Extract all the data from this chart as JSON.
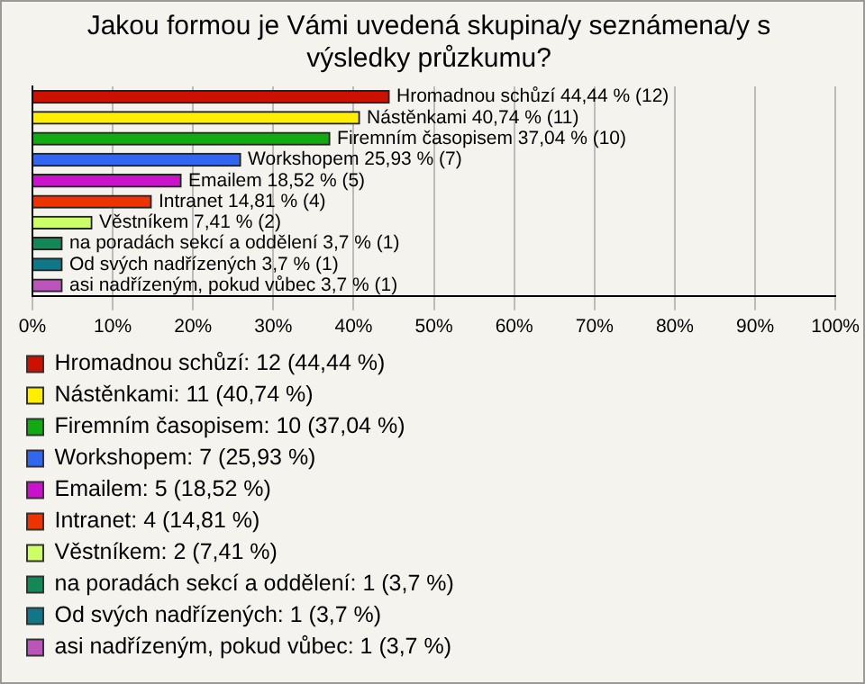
{
  "chart_data": {
    "type": "bar",
    "orientation": "horizontal",
    "title": "Jakou formou je Vámi uvedená skupina/y seznámena/y s výsledky průzkumu?",
    "categories": [
      null,
      null,
      null,
      null,
      null,
      null,
      null,
      null,
      null,
      null
    ],
    "series": [
      {
        "name": "Hromadnou schůzí: 12 (44,44 %)",
        "color": "#cc1100",
        "values": [
          44.44,
          null,
          null,
          null,
          null,
          null,
          null,
          null,
          null,
          null
        ],
        "value_labels": [
          "Hromadnou schůzí 44,44 % (12)",
          null,
          null,
          null,
          null,
          null,
          null,
          null,
          null,
          null
        ]
      },
      {
        "name": "Nástěnkami: 11 (40,74 %)",
        "color": "#ffee00",
        "values": [
          null,
          40.74,
          null,
          null,
          null,
          null,
          null,
          null,
          null,
          null
        ],
        "value_labels": [
          null,
          "Nástěnkami 40,74 % (11)",
          null,
          null,
          null,
          null,
          null,
          null,
          null,
          null
        ]
      },
      {
        "name": "Firemním časopisem: 10 (37,04 %)",
        "color": "#11aa11",
        "values": [
          null,
          null,
          37.04,
          null,
          null,
          null,
          null,
          null,
          null,
          null
        ],
        "value_labels": [
          null,
          null,
          "Firemním časopisem 37,04 % (10)",
          null,
          null,
          null,
          null,
          null,
          null,
          null
        ]
      },
      {
        "name": "Workshopem: 7 (25,93 %)",
        "color": "#3366ee",
        "values": [
          null,
          null,
          null,
          25.93,
          null,
          null,
          null,
          null,
          null,
          null
        ],
        "value_labels": [
          null,
          null,
          null,
          "Workshopem 25,93 % (7)",
          null,
          null,
          null,
          null,
          null,
          null
        ]
      },
      {
        "name": "Emailem: 5 (18,52 %)",
        "color": "#cc11cc",
        "values": [
          null,
          null,
          null,
          null,
          18.52,
          null,
          null,
          null,
          null,
          null
        ],
        "value_labels": [
          null,
          null,
          null,
          null,
          "Emailem 18,52 % (5)",
          null,
          null,
          null,
          null,
          null
        ]
      },
      {
        "name": "Intranet: 4 (14,81 %)",
        "color": "#ee3300",
        "values": [
          null,
          null,
          null,
          null,
          null,
          14.81,
          null,
          null,
          null,
          null
        ],
        "value_labels": [
          null,
          null,
          null,
          null,
          null,
          "Intranet 14,81 % (4)",
          null,
          null,
          null,
          null
        ]
      },
      {
        "name": "Věstníkem: 2 (7,41 %)",
        "color": "#ccff66",
        "values": [
          null,
          null,
          null,
          null,
          null,
          null,
          7.41,
          null,
          null,
          null
        ],
        "value_labels": [
          null,
          null,
          null,
          null,
          null,
          null,
          "Věstníkem 7,41 % (2)",
          null,
          null,
          null
        ]
      },
      {
        "name": "na poradách sekcí a oddělení: 1 (3,7 %)",
        "color": "#118855",
        "values": [
          null,
          null,
          null,
          null,
          null,
          null,
          null,
          3.7,
          null,
          null
        ],
        "value_labels": [
          null,
          null,
          null,
          null,
          null,
          null,
          null,
          "na poradách sekcí a oddělení 3,7 % (1)",
          null,
          null
        ]
      },
      {
        "name": "Od svých nadřízených: 1 (3,7 %)",
        "color": "#117788",
        "values": [
          null,
          null,
          null,
          null,
          null,
          null,
          null,
          null,
          3.7,
          null
        ],
        "value_labels": [
          null,
          null,
          null,
          null,
          null,
          null,
          null,
          null,
          "Od svých nadřízených 3,7 % (1)",
          null
        ]
      },
      {
        "name": "asi nadřízeným, pokud vůbec: 1 (3,7 %)",
        "color": "#bb55bb",
        "values": [
          null,
          null,
          null,
          null,
          null,
          null,
          null,
          null,
          null,
          3.7
        ],
        "value_labels": [
          null,
          null,
          null,
          null,
          null,
          null,
          null,
          null,
          null,
          "asi nadřízeným, pokud vůbec 3,7 % (1)"
        ]
      }
    ],
    "xlim": [
      0,
      100
    ],
    "xticks": [
      {
        "value": 0,
        "label": "0%"
      },
      {
        "value": 10,
        "label": "10%"
      },
      {
        "value": 20,
        "label": "20%"
      },
      {
        "value": 30,
        "label": "30%"
      },
      {
        "value": 40,
        "label": "40%"
      },
      {
        "value": 50,
        "label": "50%"
      },
      {
        "value": 60,
        "label": "60%"
      },
      {
        "value": 70,
        "label": "70%"
      },
      {
        "value": 80,
        "label": "80%"
      },
      {
        "value": 90,
        "label": "90%"
      },
      {
        "value": 100,
        "label": "100%"
      }
    ],
    "grid": "x",
    "legend": "bottom",
    "tick_labels": "x"
  }
}
